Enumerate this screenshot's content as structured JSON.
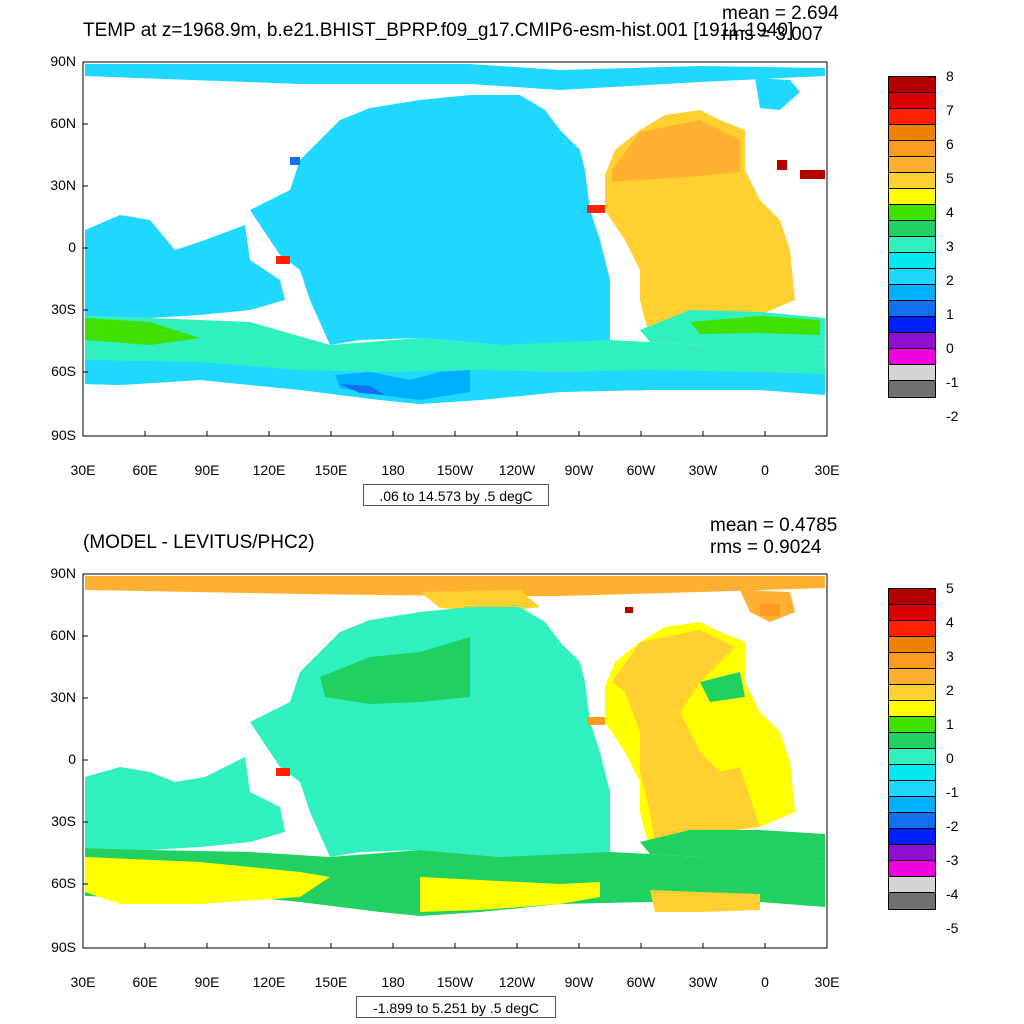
{
  "top_panel": {
    "title": "TEMP at z=1968.9m, b.e21.BHIST_BPRP.f09_g17.CMIP6-esm-hist.001 [1911-1940]",
    "mean": "mean = 2.694",
    "rms": "rms = 3.007",
    "range_text": ".06 to 14.573 by .5 degC",
    "colorbar": {
      "colors": [
        "#b40000",
        "#dc0000",
        "#ff2000",
        "#f08000",
        "#ff9a20",
        "#ffb030",
        "#ffd030",
        "#ffff00",
        "#40e000",
        "#20d060",
        "#30f0c0",
        "#00e8f0",
        "#20d8ff",
        "#00b0ff",
        "#1070f0",
        "#0020ff",
        "#9010d0",
        "#f000e0",
        "#d4d4d4",
        "#707070"
      ],
      "labels": [
        "8",
        "7",
        "6",
        "5",
        "4",
        "3",
        "2",
        "1",
        "0",
        "-1",
        "-2"
      ]
    }
  },
  "bottom_panel": {
    "title": "(MODEL - LEVITUS/PHC2)",
    "mean": "mean = 0.4785",
    "rms": "rms = 0.9024",
    "range_text": "-1.899 to 5.251 by .5 degC",
    "colorbar": {
      "colors": [
        "#b40000",
        "#dc0000",
        "#ff2000",
        "#f08000",
        "#ff9a20",
        "#ffb030",
        "#ffd030",
        "#ffff00",
        "#40e000",
        "#20d060",
        "#30f0c0",
        "#00e8f0",
        "#20d8ff",
        "#00b0ff",
        "#1070f0",
        "#0020ff",
        "#9010d0",
        "#f000e0",
        "#d4d4d4",
        "#707070"
      ],
      "labels": [
        "5",
        "4",
        "3",
        "2",
        "1",
        "0",
        "-1",
        "-2",
        "-3",
        "-4",
        "-5"
      ]
    }
  },
  "axes": {
    "y_ticks": [
      "90N",
      "60N",
      "30N",
      "0",
      "30S",
      "60S",
      "90S"
    ],
    "x_ticks": [
      "30E",
      "60E",
      "90E",
      "120E",
      "150E",
      "180",
      "150W",
      "120W",
      "90W",
      "60W",
      "30W",
      "0",
      "30E"
    ]
  },
  "colors": {
    "top_ocean_main": "#20d8ff",
    "top_atlantic": "#ffd030",
    "top_southern": "#30f0c0",
    "bottom_ocean_main": "#30f0c0",
    "bottom_atlantic": "#ffd030",
    "bottom_southern": "#20d060",
    "bottom_sub": "#ffff00"
  }
}
